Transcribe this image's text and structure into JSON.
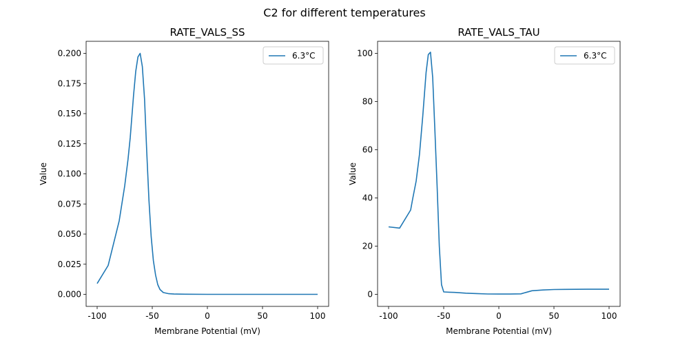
{
  "figure": {
    "suptitle": "C2 for different temperatures"
  },
  "chart_data": [
    {
      "type": "line",
      "title": "RATE_VALS_SS",
      "xlabel": "Membrane Potential (mV)",
      "ylabel": "Value",
      "xlim": [
        -110,
        110
      ],
      "ylim": [
        -0.01,
        0.21
      ],
      "xticks": [
        -100,
        -50,
        0,
        50,
        100
      ],
      "yticks": [
        0.0,
        0.025,
        0.05,
        0.075,
        0.1,
        0.125,
        0.15,
        0.175,
        0.2
      ],
      "ytick_labels": [
        "0.000",
        "0.025",
        "0.050",
        "0.075",
        "0.100",
        "0.125",
        "0.150",
        "0.175",
        "0.200"
      ],
      "legend_position": "top-right",
      "grid": false,
      "series": [
        {
          "name": "6.3°C",
          "color": "#1f77b4",
          "x": [
            -100,
            -90,
            -80,
            -75,
            -72,
            -70,
            -67,
            -65,
            -63,
            -61,
            -59,
            -57,
            -55,
            -53,
            -51,
            -49,
            -47,
            -45,
            -43,
            -40,
            -35,
            -30,
            -20,
            0,
            50,
            100
          ],
          "y": [
            0.009,
            0.024,
            0.061,
            0.09,
            0.112,
            0.13,
            0.165,
            0.185,
            0.197,
            0.2,
            0.189,
            0.162,
            0.118,
            0.078,
            0.048,
            0.028,
            0.016,
            0.008,
            0.004,
            0.0015,
            0.0005,
            0.0002,
            0.0001,
            0.0,
            0.0,
            0.0
          ]
        }
      ]
    },
    {
      "type": "line",
      "title": "RATE_VALS_TAU",
      "xlabel": "Membrane Potential (mV)",
      "ylabel": "Value",
      "xlim": [
        -110,
        110
      ],
      "ylim": [
        -5,
        105
      ],
      "xticks": [
        -100,
        -50,
        0,
        50,
        100
      ],
      "yticks": [
        0,
        20,
        40,
        60,
        80,
        100
      ],
      "ytick_labels": [
        "0",
        "20",
        "40",
        "60",
        "80",
        "100"
      ],
      "legend_position": "top-right",
      "grid": false,
      "series": [
        {
          "name": "6.3°C",
          "color": "#1f77b4",
          "x": [
            -100,
            -90,
            -80,
            -78,
            -75,
            -72,
            -69,
            -66,
            -64,
            -62,
            -60,
            -58,
            -56,
            -54,
            -52,
            -50,
            -45,
            -40,
            -30,
            -20,
            -10,
            0,
            10,
            20,
            30,
            40,
            50,
            60,
            80,
            100
          ],
          "y": [
            28,
            27.5,
            35,
            40,
            47,
            58,
            74,
            92,
            99.5,
            100.5,
            90,
            68,
            45,
            20,
            4,
            1,
            0.9,
            0.8,
            0.5,
            0.3,
            0.15,
            0.1,
            0.1,
            0.2,
            1.5,
            1.8,
            2.0,
            2.05,
            2.1,
            2.1
          ]
        }
      ]
    }
  ]
}
